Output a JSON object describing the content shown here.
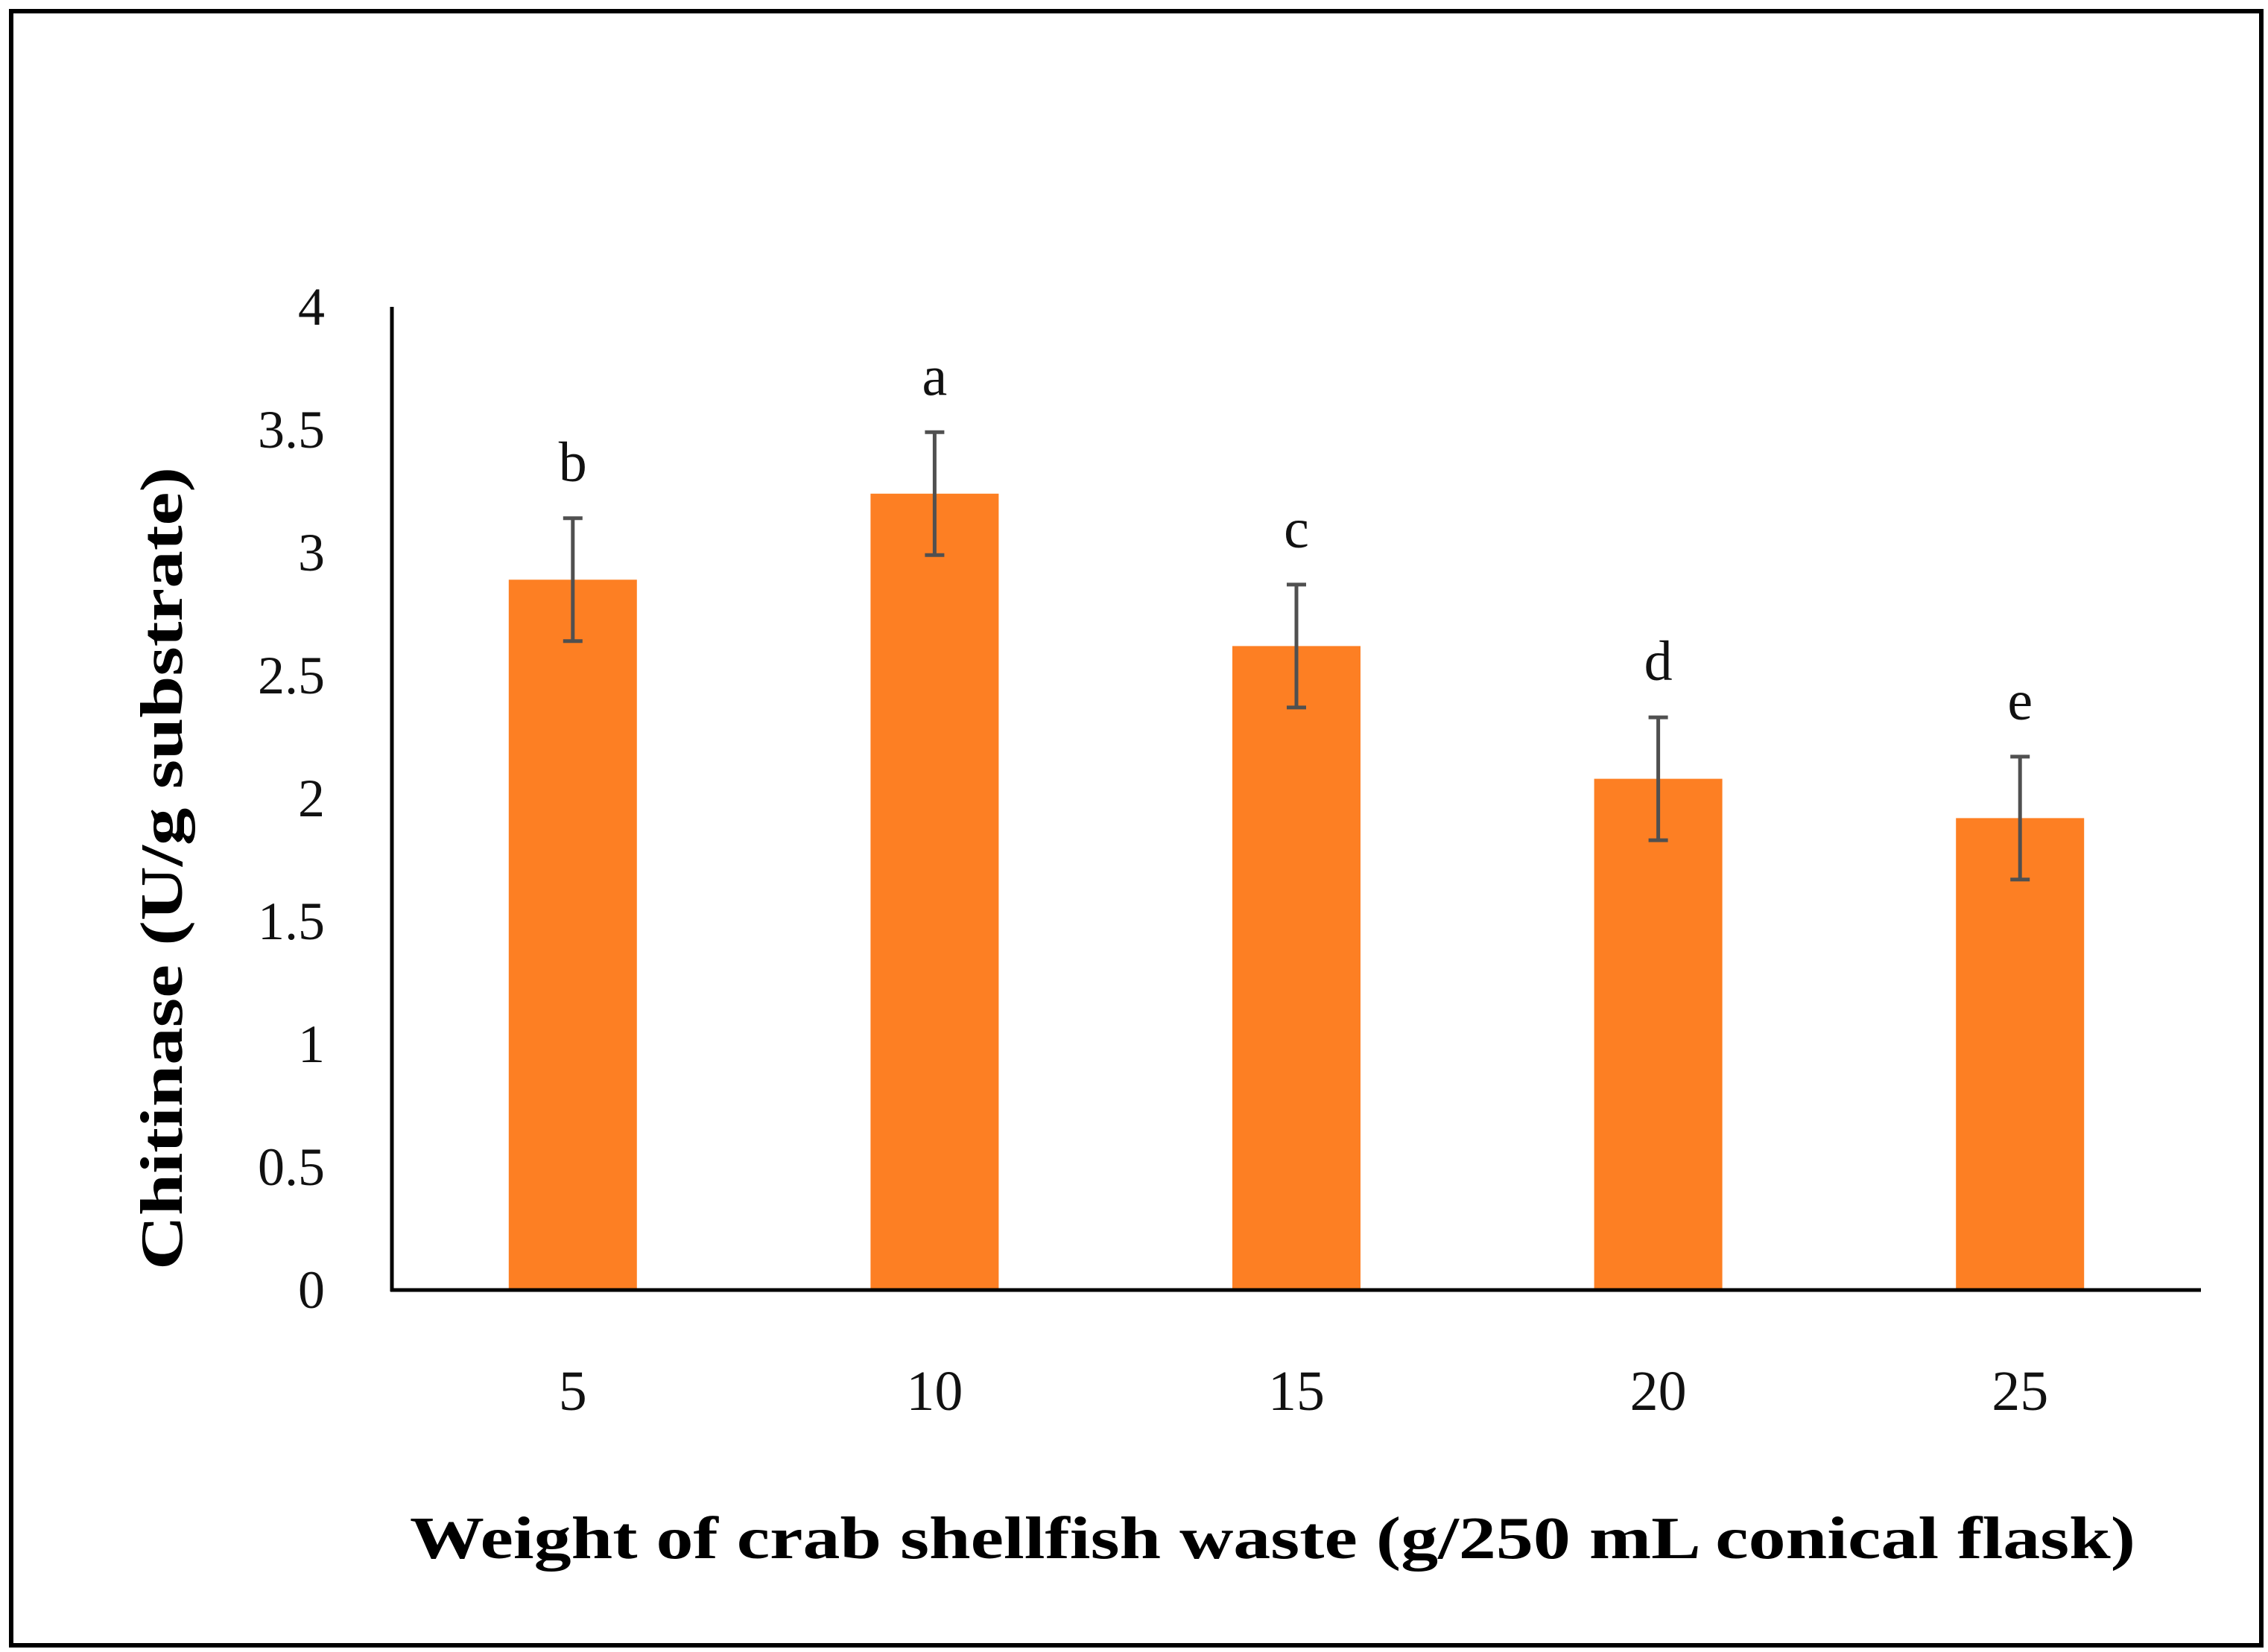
{
  "chart_data": {
    "type": "bar",
    "title": "",
    "xlabel": "Weight of crab shellfish waste (g/250 mL conical flask)",
    "ylabel": "Chitinase (U/g substrate)",
    "ylim": [
      0,
      4
    ],
    "yticks": [
      "0",
      "0.5",
      "1",
      "1.5",
      "2",
      "2.5",
      "3",
      "3.5",
      "4"
    ],
    "categories": [
      "5",
      "10",
      "15",
      "20",
      "25"
    ],
    "values": [
      2.89,
      3.24,
      2.62,
      2.08,
      1.92
    ],
    "errors": [
      0.25,
      0.25,
      0.25,
      0.25,
      0.25
    ],
    "significance": [
      "b",
      "a",
      "c",
      "d",
      "e"
    ],
    "grid": false,
    "legend": "none",
    "colors": {
      "bar": "#fd7f23",
      "error_bar": "#505050",
      "axis": "#000000"
    }
  }
}
